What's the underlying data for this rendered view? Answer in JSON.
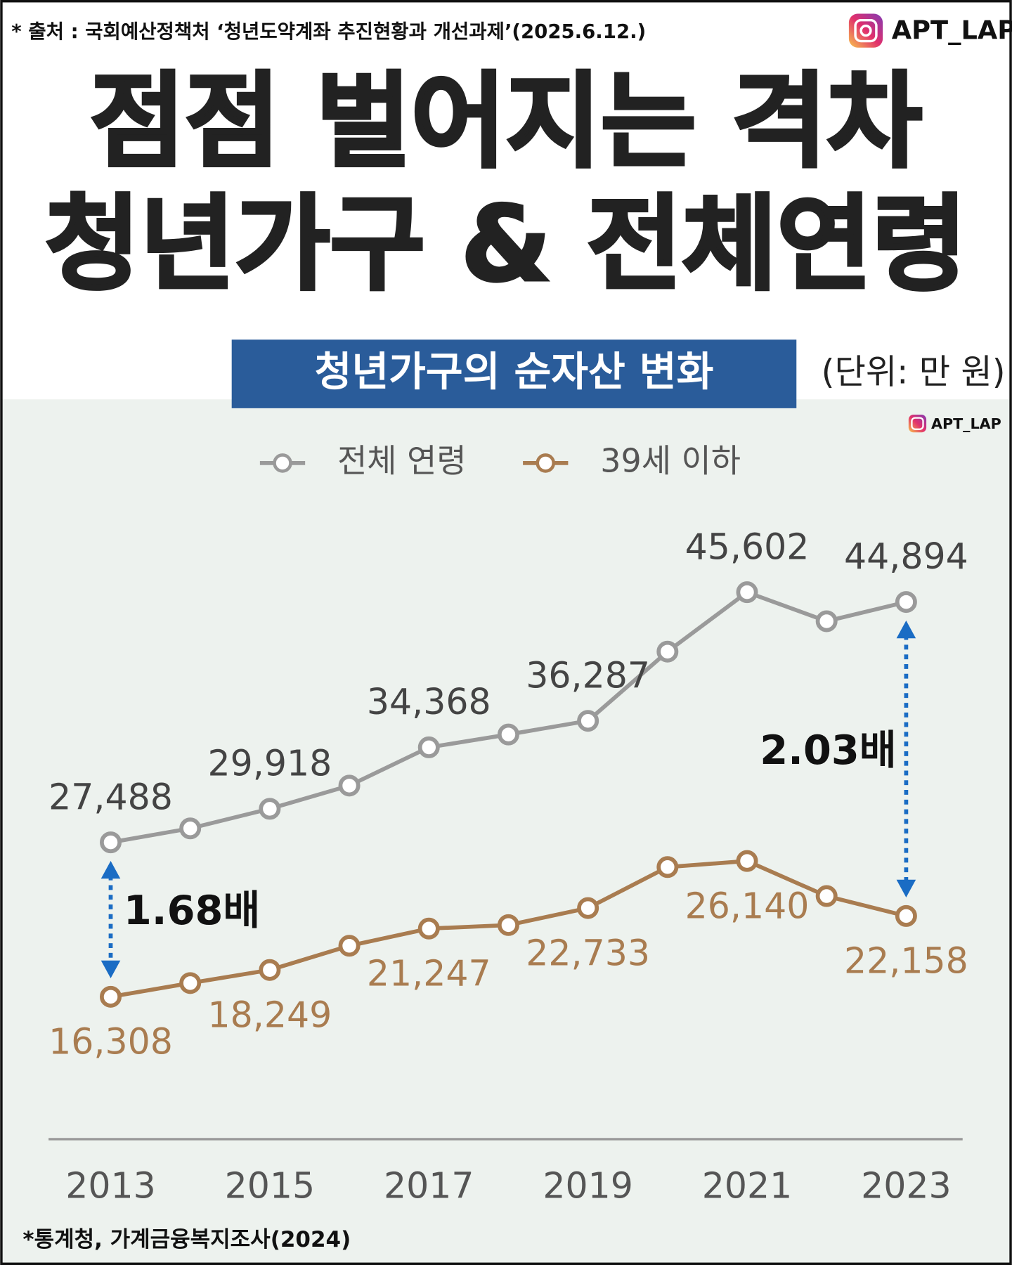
{
  "header": {
    "source": "* 출처 : 국회예산정책처 ‘청년도약계좌 추진현황과 개선과제’(2025.6.12.)",
    "brand": "APT_LAP",
    "title_lines": [
      "점점 벌어지는 격차",
      "청년가구 & 전체연령"
    ]
  },
  "chart_data": {
    "type": "line",
    "title": "청년가구의 순자산 변화",
    "unit": "(단위: 만 원)",
    "categories": [
      "2013",
      null,
      "2015",
      null,
      "2017",
      null,
      "2019",
      null,
      "2021",
      null,
      "2023"
    ],
    "series": [
      {
        "name": "전체 연령",
        "color": "#9a9a9a",
        "values": [
          27488,
          28500,
          29918,
          31600,
          34368,
          35300,
          36287,
          41300,
          45602,
          43500,
          44894
        ],
        "value_labels": [
          "27,488",
          null,
          "29,918",
          null,
          "34,368",
          null,
          "36,287",
          null,
          "45,602",
          null,
          "44,894"
        ]
      },
      {
        "name": "39세 이하",
        "color": "#a97c50",
        "values": [
          16308,
          17300,
          18249,
          20000,
          21247,
          21500,
          22733,
          25700,
          26140,
          23600,
          22158
        ],
        "value_labels": [
          "16,308",
          null,
          "18,249",
          null,
          "21,247",
          null,
          "22,733",
          null,
          "26,140",
          null,
          "22,158"
        ]
      }
    ],
    "ylim": [
      6000,
      48000
    ],
    "grid": false,
    "annotations": [
      "1.68배",
      "2.03배"
    ]
  },
  "footer": {
    "note": "*통계청, 가계금융복지조사(2024)"
  }
}
